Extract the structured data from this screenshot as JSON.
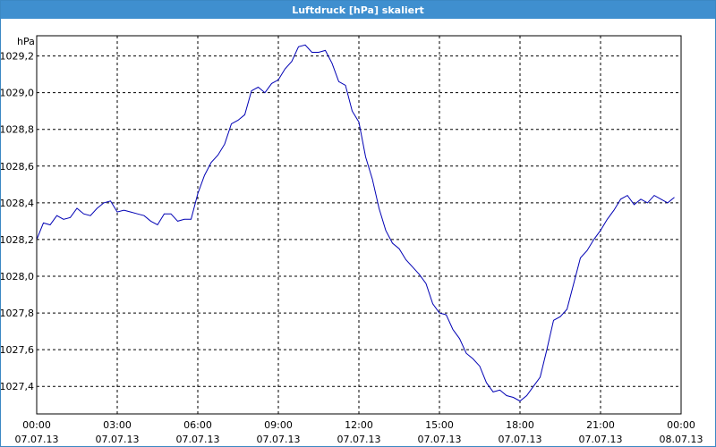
{
  "window": {
    "title": "Luftdruck [hPa] skaliert"
  },
  "colors": {
    "titlebar": "#3f8fcf",
    "line": "#0000b4",
    "grid": "#000000"
  },
  "chart_data": {
    "type": "line",
    "title": "Luftdruck [hPa] skaliert",
    "ylabel": "hPa",
    "xlabel": "",
    "grid": true,
    "ylim": [
      1027.25,
      1029.31
    ],
    "xlim": [
      "2013-07-07 00:00",
      "2013-07-08 00:00"
    ],
    "y_ticks": [
      "1027,4",
      "1027,6",
      "1027,8",
      "1028,0",
      "1028,2",
      "1028,4",
      "1028,6",
      "1028,8",
      "1029,0",
      "1029,2"
    ],
    "x_ticks": [
      {
        "time": "00:00",
        "date": "07.07.13"
      },
      {
        "time": "03:00",
        "date": "07.07.13"
      },
      {
        "time": "06:00",
        "date": "07.07.13"
      },
      {
        "time": "09:00",
        "date": "07.07.13"
      },
      {
        "time": "12:00",
        "date": "07.07.13"
      },
      {
        "time": "15:00",
        "date": "07.07.13"
      },
      {
        "time": "18:00",
        "date": "07.07.13"
      },
      {
        "time": "21:00",
        "date": "07.07.13"
      },
      {
        "time": "00:00",
        "date": "08.07.13"
      }
    ],
    "series": [
      {
        "x": [
          "2013-07-07 00:00",
          "2013-07-07 00:15",
          "2013-07-07 00:30",
          "2013-07-07 00:45",
          "2013-07-07 01:00",
          "2013-07-07 01:15",
          "2013-07-07 01:30",
          "2013-07-07 01:45",
          "2013-07-07 02:00",
          "2013-07-07 02:15",
          "2013-07-07 02:30",
          "2013-07-07 02:45",
          "2013-07-07 03:00",
          "2013-07-07 03:15",
          "2013-07-07 03:30",
          "2013-07-07 03:45",
          "2013-07-07 04:00",
          "2013-07-07 04:15",
          "2013-07-07 04:30",
          "2013-07-07 04:45",
          "2013-07-07 05:00",
          "2013-07-07 05:15",
          "2013-07-07 05:30",
          "2013-07-07 05:45",
          "2013-07-07 06:00",
          "2013-07-07 06:15",
          "2013-07-07 06:30",
          "2013-07-07 06:45",
          "2013-07-07 07:00",
          "2013-07-07 07:15",
          "2013-07-07 07:30",
          "2013-07-07 07:45",
          "2013-07-07 08:00",
          "2013-07-07 08:15",
          "2013-07-07 08:30",
          "2013-07-07 08:45",
          "2013-07-07 09:00",
          "2013-07-07 09:15",
          "2013-07-07 09:30",
          "2013-07-07 09:45",
          "2013-07-07 10:00",
          "2013-07-07 10:15",
          "2013-07-07 10:30",
          "2013-07-07 10:45",
          "2013-07-07 11:00",
          "2013-07-07 11:15",
          "2013-07-07 11:30",
          "2013-07-07 11:45",
          "2013-07-07 12:00",
          "2013-07-07 12:15",
          "2013-07-07 12:30",
          "2013-07-07 12:45",
          "2013-07-07 13:00",
          "2013-07-07 13:15",
          "2013-07-07 13:30",
          "2013-07-07 13:45",
          "2013-07-07 14:00",
          "2013-07-07 14:15",
          "2013-07-07 14:30",
          "2013-07-07 14:45",
          "2013-07-07 15:00",
          "2013-07-07 15:15",
          "2013-07-07 15:30",
          "2013-07-07 15:45",
          "2013-07-07 16:00",
          "2013-07-07 16:15",
          "2013-07-07 16:30",
          "2013-07-07 16:45",
          "2013-07-07 17:00",
          "2013-07-07 17:15",
          "2013-07-07 17:30",
          "2013-07-07 17:45",
          "2013-07-07 18:00",
          "2013-07-07 18:15",
          "2013-07-07 18:30",
          "2013-07-07 18:45",
          "2013-07-07 19:00",
          "2013-07-07 19:15",
          "2013-07-07 19:30",
          "2013-07-07 19:45",
          "2013-07-07 20:00",
          "2013-07-07 20:15",
          "2013-07-07 20:30",
          "2013-07-07 20:45",
          "2013-07-07 21:00",
          "2013-07-07 21:15",
          "2013-07-07 21:30",
          "2013-07-07 21:45",
          "2013-07-07 22:00",
          "2013-07-07 22:15",
          "2013-07-07 22:30",
          "2013-07-07 22:45",
          "2013-07-07 23:00",
          "2013-07-07 23:15",
          "2013-07-07 23:30",
          "2013-07-07 23:45"
        ],
        "y": [
          1028.2,
          1028.29,
          1028.28,
          1028.33,
          1028.31,
          1028.32,
          1028.37,
          1028.34,
          1028.33,
          1028.37,
          1028.4,
          1028.41,
          1028.35,
          1028.36,
          1028.35,
          1028.34,
          1028.33,
          1028.3,
          1028.28,
          1028.34,
          1028.34,
          1028.3,
          1028.31,
          1028.31,
          1028.45,
          1028.55,
          1028.62,
          1028.66,
          1028.72,
          1028.83,
          1028.85,
          1028.88,
          1029.01,
          1029.03,
          1029.0,
          1029.05,
          1029.07,
          1029.13,
          1029.17,
          1029.25,
          1029.26,
          1029.22,
          1029.22,
          1029.23,
          1029.16,
          1029.06,
          1029.04,
          1028.9,
          1028.84,
          1028.65,
          1028.53,
          1028.37,
          1028.25,
          1028.18,
          1028.15,
          1028.09,
          1028.05,
          1028.01,
          1027.96,
          1027.85,
          1027.8,
          1027.79,
          1027.71,
          1027.66,
          1027.58,
          1027.55,
          1027.51,
          1027.42,
          1027.37,
          1027.38,
          1027.35,
          1027.34,
          1027.32,
          1027.35,
          1027.4,
          1027.45,
          1027.6,
          1027.76,
          1027.78,
          1027.82,
          1027.96,
          1028.1,
          1028.14,
          1028.2,
          1028.25,
          1028.31,
          1028.36,
          1028.42,
          1028.44,
          1028.39,
          1028.42,
          1028.4,
          1028.44,
          1028.42,
          1028.4,
          1028.43
        ]
      }
    ]
  }
}
